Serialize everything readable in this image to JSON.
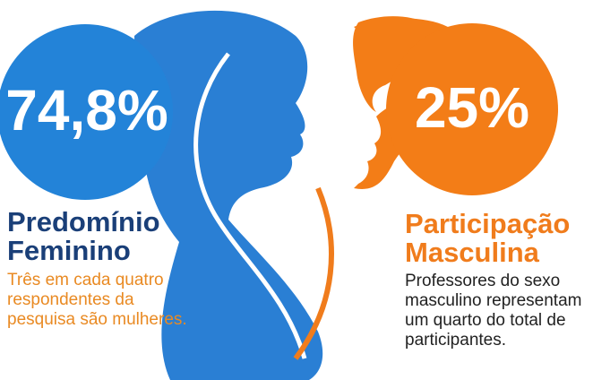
{
  "female": {
    "stat": "74,8%",
    "title_lines": [
      "Predomínio",
      "Feminino"
    ],
    "description_lines": [
      "Três em cada quatro",
      "respondentes da",
      "pesquisa são mulheres."
    ]
  },
  "male": {
    "stat": "25%",
    "title_lines": [
      "Participação",
      "Masculina"
    ],
    "description_lines": [
      "Professores do sexo",
      "masculino representam",
      "um quarto do total de",
      "participantes."
    ]
  }
}
